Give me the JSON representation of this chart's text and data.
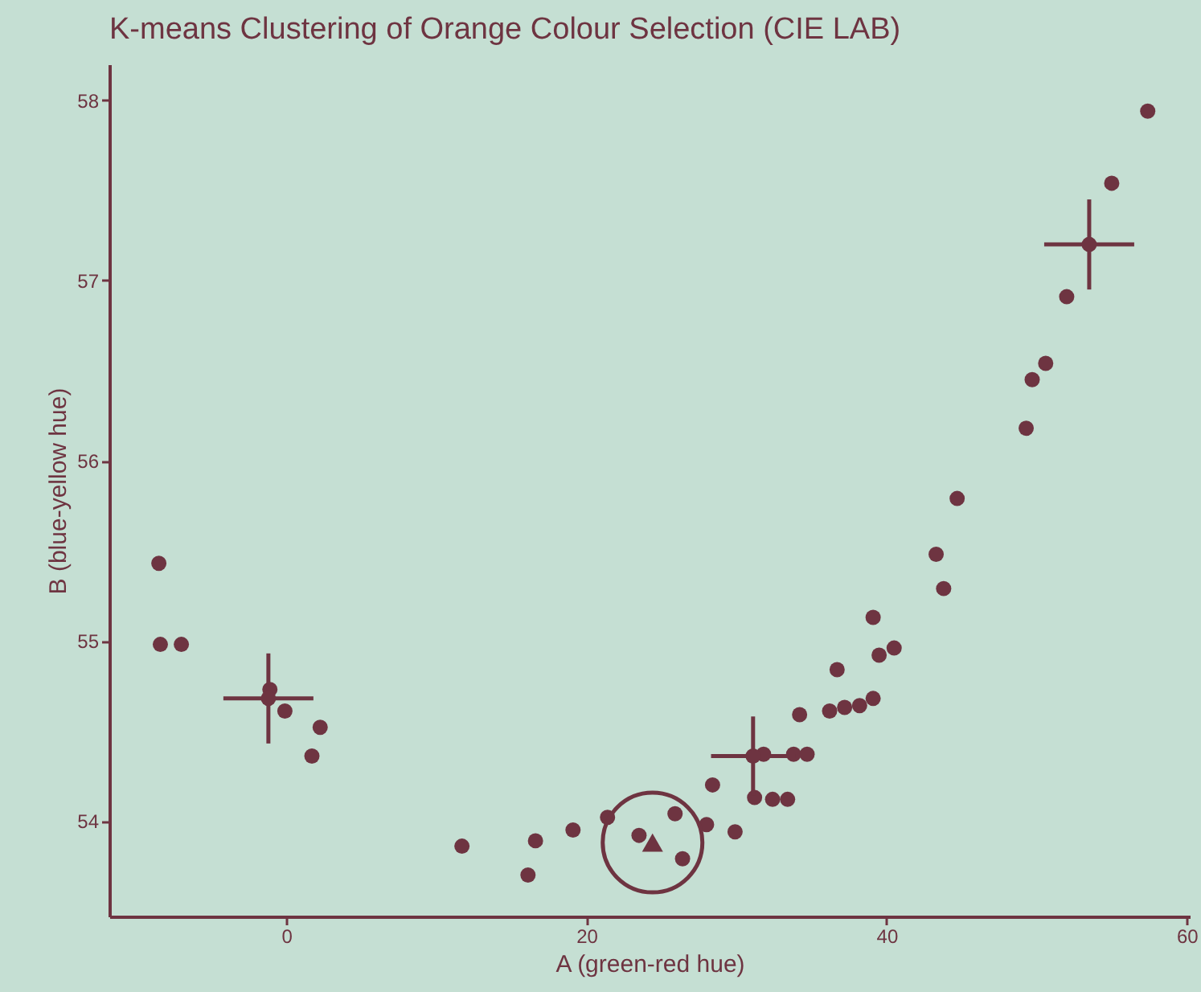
{
  "chart_data": {
    "type": "scatter",
    "title": "K-means Clustering of Orange Colour Selection (CIE LAB)",
    "xlabel": "A (green-red hue)",
    "ylabel": "B (blue-yellow hue)",
    "xlim": [
      -11.8,
      60.2
    ],
    "ylim": [
      53.47,
      58.2
    ],
    "xticks": [
      0,
      20,
      40,
      60
    ],
    "yticks": [
      54,
      55,
      56,
      57,
      58
    ],
    "series": [
      {
        "color": "#6e3441",
        "marker": "circle",
        "x": [
          -8.5,
          -8.4,
          -7.0,
          -1.1,
          -0.1,
          2.25,
          1.7,
          11.7,
          16.1,
          16.6,
          19.1,
          21.4,
          23.5,
          25.9,
          26.4,
          28.0,
          28.4,
          29.9,
          31.8,
          33.8,
          34.7,
          31.2,
          32.4,
          33.4,
          34.2,
          36.2,
          37.2,
          38.2,
          39.1,
          36.7,
          39.5,
          40.5,
          39.1,
          43.8,
          43.3,
          44.7,
          49.3,
          49.7,
          50.6,
          52.0,
          55.0,
          57.4
        ],
        "values": [
          55.43,
          54.98,
          54.98,
          54.73,
          54.61,
          54.52,
          54.36,
          53.86,
          53.7,
          53.89,
          53.95,
          54.02,
          53.92,
          54.04,
          53.79,
          53.98,
          54.2,
          53.94,
          54.37,
          54.37,
          54.37,
          54.13,
          54.12,
          54.12,
          54.59,
          54.61,
          54.63,
          54.64,
          54.68,
          54.84,
          54.92,
          54.96,
          55.13,
          55.29,
          55.48,
          55.79,
          56.18,
          56.45,
          56.54,
          56.91,
          57.54,
          57.94
        ]
      },
      {
        "color": "#6e3441",
        "marker": "circle",
        "x": [
          -1.2,
          31.1,
          53.5
        ],
        "values": [
          54.68,
          54.36,
          57.2
        ],
        "errors": [
          0.25,
          0.22,
          0.25
        ],
        "xerrors": [
          3,
          2.8,
          3
        ]
      },
      {
        "color": "#6e3441",
        "marker": "triangle",
        "x": [
          24.4
        ],
        "values": [
          53.88
        ]
      }
    ]
  }
}
